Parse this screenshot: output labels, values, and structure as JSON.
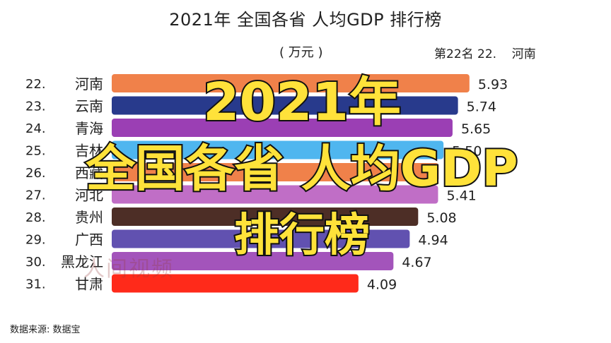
{
  "header": {
    "title": "2021年 全国各省 人均GDP 排行榜",
    "unit": "( 万元 )",
    "rank_label": "第22名",
    "rank_number": "22.",
    "rank_province": "河南"
  },
  "overlay": {
    "year": "2021年",
    "line2": "全国各省 人均GDP",
    "line3": "排行榜"
  },
  "watermark": "人间视频",
  "source": "数据来源: 数据宝",
  "chart_data": {
    "type": "bar",
    "orientation": "horizontal",
    "title": "2021年 全国各省 人均GDP 排行榜",
    "unit": "( 万元 )",
    "ranks": [
      "22.",
      "23.",
      "24.",
      "25.",
      "26.",
      "27.",
      "28.",
      "29.",
      "30.",
      "31."
    ],
    "categories": [
      "河南",
      "云南",
      "青海",
      "吉林",
      "西藏",
      "河北",
      "贵州",
      "广西",
      "黑龙江",
      "甘肃"
    ],
    "values": [
      5.93,
      5.74,
      5.65,
      5.5,
      5.42,
      5.41,
      5.08,
      4.94,
      4.67,
      4.09
    ],
    "value_labels": [
      "5.93",
      "5.74",
      "5.65",
      "5.50",
      "",
      "5.41",
      "5.08",
      "4.94",
      "4.67",
      "4.09"
    ],
    "colors": [
      "#f0814a",
      "#283a8c",
      "#9b3fb4",
      "#4fb6ef",
      "#f0814a",
      "#c06ec6",
      "#4d2e26",
      "#6151b0",
      "#a354bb",
      "#ff2a1a"
    ]
  }
}
